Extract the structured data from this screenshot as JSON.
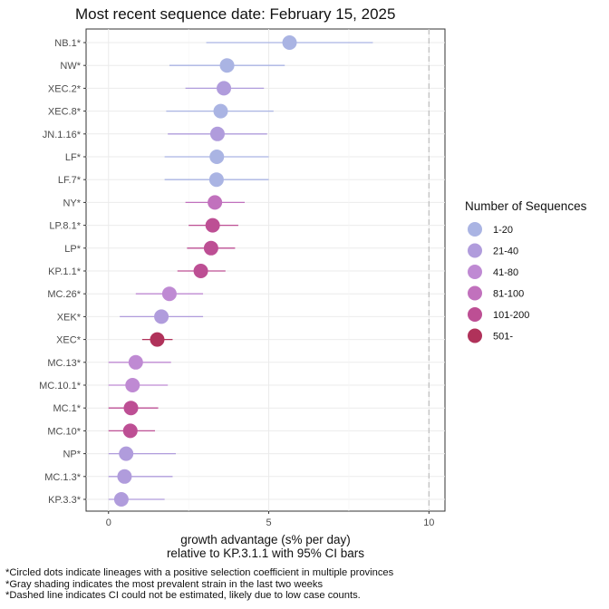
{
  "title": "Most recent sequence date: February 15, 2025",
  "footnotes": [
    "*Circled dots indicate lineages with a positive selection coefficient in multiple provinces",
    "*Gray shading indicates the most prevalent strain in the last two weeks",
    "*Dashed line indicates CI could not be estimated, likely due to low case counts."
  ],
  "chart_data": {
    "type": "scatter",
    "subtype": "point-with-error-bars",
    "xlabel_line1": "growth advantage (s% per day)",
    "xlabel_line2": "relative to  KP.3.1.1  with 95% CI bars",
    "xlim": [
      -0.7,
      10.5
    ],
    "xticks": [
      0,
      5,
      10
    ],
    "reference_line_x": 10,
    "reference_line_style": "dashed",
    "grid": true,
    "legend": {
      "title": "Number of Sequences",
      "placement": "right",
      "entries": [
        {
          "label": "1-20",
          "color": "#aab4e3"
        },
        {
          "label": "21-40",
          "color": "#b09cdc"
        },
        {
          "label": "41-80",
          "color": "#bf8ad3"
        },
        {
          "label": "81-100",
          "color": "#c171bd"
        },
        {
          "label": "101-200",
          "color": "#bd4f94"
        },
        {
          "label": "501-",
          "color": "#b0325a"
        }
      ]
    },
    "points": [
      {
        "lineage": "NB.1*",
        "estimate": 5.65,
        "ci_low": 3.05,
        "ci_high": 8.25,
        "group": "1-20"
      },
      {
        "lineage": "NW*",
        "estimate": 3.7,
        "ci_low": 1.9,
        "ci_high": 5.5,
        "group": "1-20"
      },
      {
        "lineage": "XEC.2*",
        "estimate": 3.6,
        "ci_low": 2.4,
        "ci_high": 4.85,
        "group": "21-40"
      },
      {
        "lineage": "XEC.8*",
        "estimate": 3.5,
        "ci_low": 1.8,
        "ci_high": 5.15,
        "group": "1-20"
      },
      {
        "lineage": "JN.1.16*",
        "estimate": 3.4,
        "ci_low": 1.85,
        "ci_high": 4.95,
        "group": "21-40"
      },
      {
        "lineage": "LF*",
        "estimate": 3.38,
        "ci_low": 1.75,
        "ci_high": 5.0,
        "group": "1-20"
      },
      {
        "lineage": "LF.7*",
        "estimate": 3.37,
        "ci_low": 1.75,
        "ci_high": 5.0,
        "group": "1-20"
      },
      {
        "lineage": "NY*",
        "estimate": 3.32,
        "ci_low": 2.4,
        "ci_high": 4.25,
        "group": "81-100"
      },
      {
        "lineage": "LP.8.1*",
        "estimate": 3.25,
        "ci_low": 2.5,
        "ci_high": 4.05,
        "group": "101-200"
      },
      {
        "lineage": "LP*",
        "estimate": 3.2,
        "ci_low": 2.45,
        "ci_high": 3.95,
        "group": "101-200"
      },
      {
        "lineage": "KP.1.1*",
        "estimate": 2.88,
        "ci_low": 2.15,
        "ci_high": 3.65,
        "group": "101-200"
      },
      {
        "lineage": "MC.26*",
        "estimate": 1.9,
        "ci_low": 0.85,
        "ci_high": 2.95,
        "group": "41-80"
      },
      {
        "lineage": "XEK*",
        "estimate": 1.65,
        "ci_low": 0.35,
        "ci_high": 2.95,
        "group": "21-40"
      },
      {
        "lineage": "XEC*",
        "estimate": 1.52,
        "ci_low": 1.05,
        "ci_high": 2.0,
        "group": "501-"
      },
      {
        "lineage": "MC.13*",
        "estimate": 0.85,
        "ci_low": 0.0,
        "ci_high": 1.95,
        "group": "41-80"
      },
      {
        "lineage": "MC.10.1*",
        "estimate": 0.75,
        "ci_low": 0.0,
        "ci_high": 1.85,
        "group": "41-80"
      },
      {
        "lineage": "MC.1*",
        "estimate": 0.7,
        "ci_low": 0.0,
        "ci_high": 1.55,
        "group": "101-200"
      },
      {
        "lineage": "MC.10*",
        "estimate": 0.68,
        "ci_low": 0.0,
        "ci_high": 1.45,
        "group": "101-200"
      },
      {
        "lineage": "NP*",
        "estimate": 0.55,
        "ci_low": 0.0,
        "ci_high": 2.1,
        "group": "21-40"
      },
      {
        "lineage": "MC.1.3*",
        "estimate": 0.5,
        "ci_low": 0.0,
        "ci_high": 2.0,
        "group": "21-40"
      },
      {
        "lineage": "KP.3.3*",
        "estimate": 0.4,
        "ci_low": 0.0,
        "ci_high": 1.75,
        "group": "21-40"
      }
    ]
  }
}
